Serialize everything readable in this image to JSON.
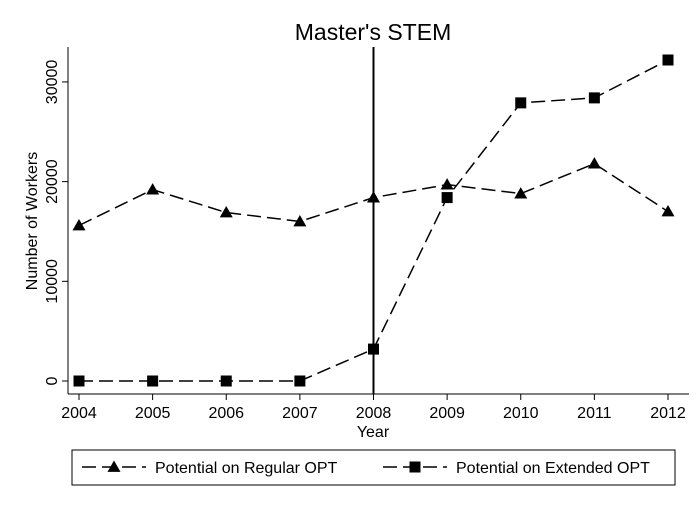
{
  "chart_data": {
    "type": "line",
    "title": "Master's STEM",
    "xlabel": "Year",
    "ylabel": "Number of Workers",
    "x": [
      "2004",
      "2005",
      "2006",
      "2007",
      "2008",
      "2009",
      "2010",
      "2011",
      "2012"
    ],
    "xlim": [
      2004,
      2012
    ],
    "ylim": [
      0,
      32000
    ],
    "yticks": [
      "0",
      "10000",
      "20000",
      "30000"
    ],
    "grid": false,
    "reference_line": {
      "axis": "x",
      "value": 2008
    },
    "legend_position": "bottom",
    "series": [
      {
        "name": "Potential on Regular OPT",
        "marker": "triangle",
        "line_style": "dashed",
        "color": "#000000",
        "values": [
          15600,
          19200,
          16900,
          16000,
          18400,
          19700,
          18800,
          21800,
          17000
        ]
      },
      {
        "name": "Potential on Extended OPT",
        "marker": "square",
        "line_style": "dashed",
        "color": "#000000",
        "values": [
          0,
          0,
          0,
          0,
          3200,
          18400,
          27900,
          28400,
          32200
        ]
      }
    ]
  },
  "colors": {
    "title": "#1f2d59",
    "axis": "#000000",
    "background": "#ffffff"
  }
}
